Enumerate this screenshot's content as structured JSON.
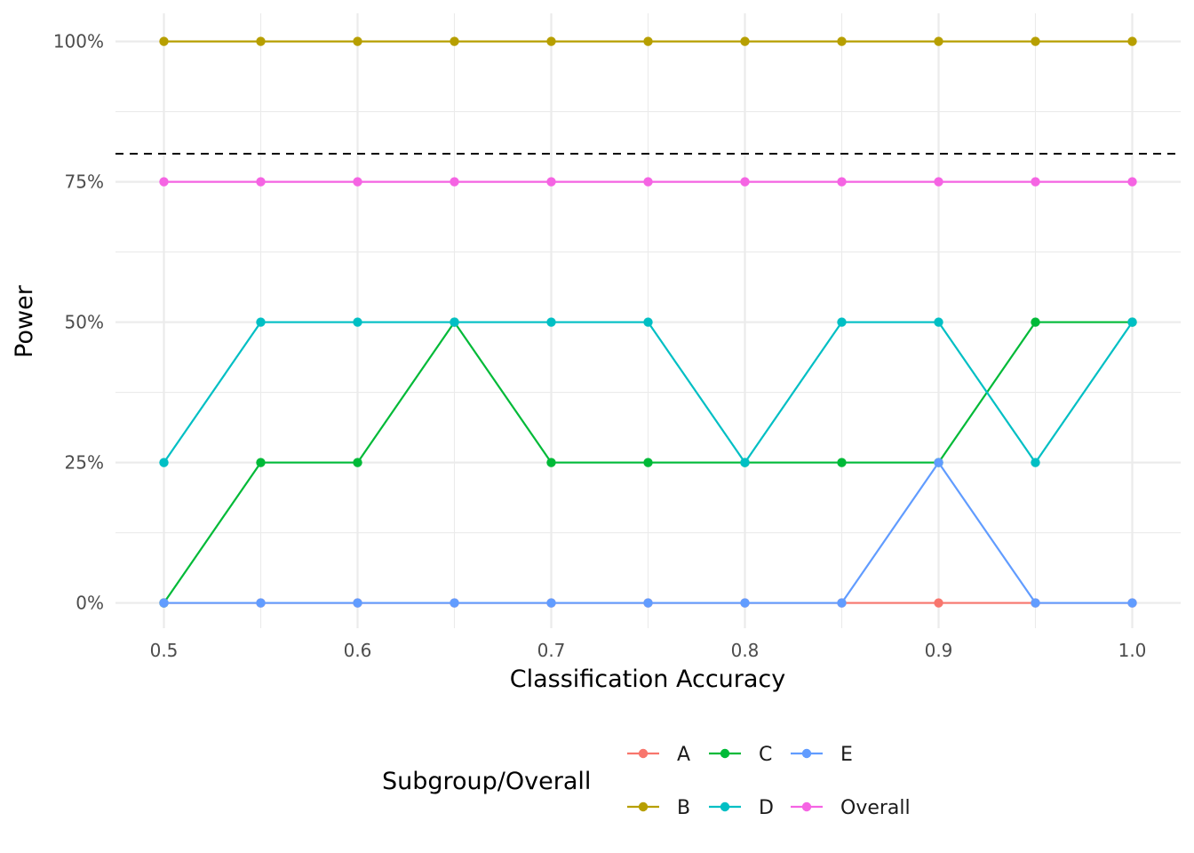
{
  "chart_data": {
    "type": "line",
    "xlabel": "Classification Accuracy",
    "ylabel": "Power",
    "x": [
      0.5,
      0.55,
      0.6,
      0.65,
      0.7,
      0.75,
      0.8,
      0.85,
      0.9,
      0.95,
      1.0
    ],
    "x_ticks": [
      0.5,
      0.6,
      0.7,
      0.8,
      0.9,
      1.0
    ],
    "x_tick_labels": [
      "0.5",
      "0.6",
      "0.7",
      "0.8",
      "0.9",
      "1.0"
    ],
    "xlim": [
      0.475,
      1.025
    ],
    "y_ticks": [
      0,
      0.25,
      0.5,
      0.75,
      1.0
    ],
    "y_tick_labels": [
      "0%",
      "25%",
      "50%",
      "75%",
      "100%"
    ],
    "ylim": [
      -0.045,
      1.05
    ],
    "reference_line": {
      "y": 0.8,
      "style": "dashed",
      "color": "#000000"
    },
    "grid": true,
    "legend_title": "Subgroup/Overall",
    "legend_position": "bottom",
    "series": [
      {
        "name": "A",
        "color": "#F8766D",
        "values": [
          0,
          0,
          0,
          0,
          0,
          0,
          0,
          0,
          0,
          0,
          0
        ]
      },
      {
        "name": "B",
        "color": "#B79F00",
        "values": [
          1,
          1,
          1,
          1,
          1,
          1,
          1,
          1,
          1,
          1,
          1
        ]
      },
      {
        "name": "C",
        "color": "#00BA38",
        "values": [
          0,
          0.25,
          0.25,
          0.5,
          0.25,
          0.25,
          0.25,
          0.25,
          0.25,
          0.5,
          0.5
        ]
      },
      {
        "name": "D",
        "color": "#00BFC4",
        "values": [
          0.25,
          0.5,
          0.5,
          0.5,
          0.5,
          0.5,
          0.25,
          0.5,
          0.5,
          0.25,
          0.5
        ]
      },
      {
        "name": "E",
        "color": "#619CFF",
        "values": [
          0,
          0,
          0,
          0,
          0,
          0,
          0,
          0,
          0.25,
          0,
          0
        ]
      },
      {
        "name": "Overall",
        "color": "#F564E3",
        "values": [
          0.75,
          0.75,
          0.75,
          0.75,
          0.75,
          0.75,
          0.75,
          0.75,
          0.75,
          0.75,
          0.75
        ]
      }
    ],
    "legend_order": [
      "A",
      "C",
      "E",
      "B",
      "D",
      "Overall"
    ]
  }
}
